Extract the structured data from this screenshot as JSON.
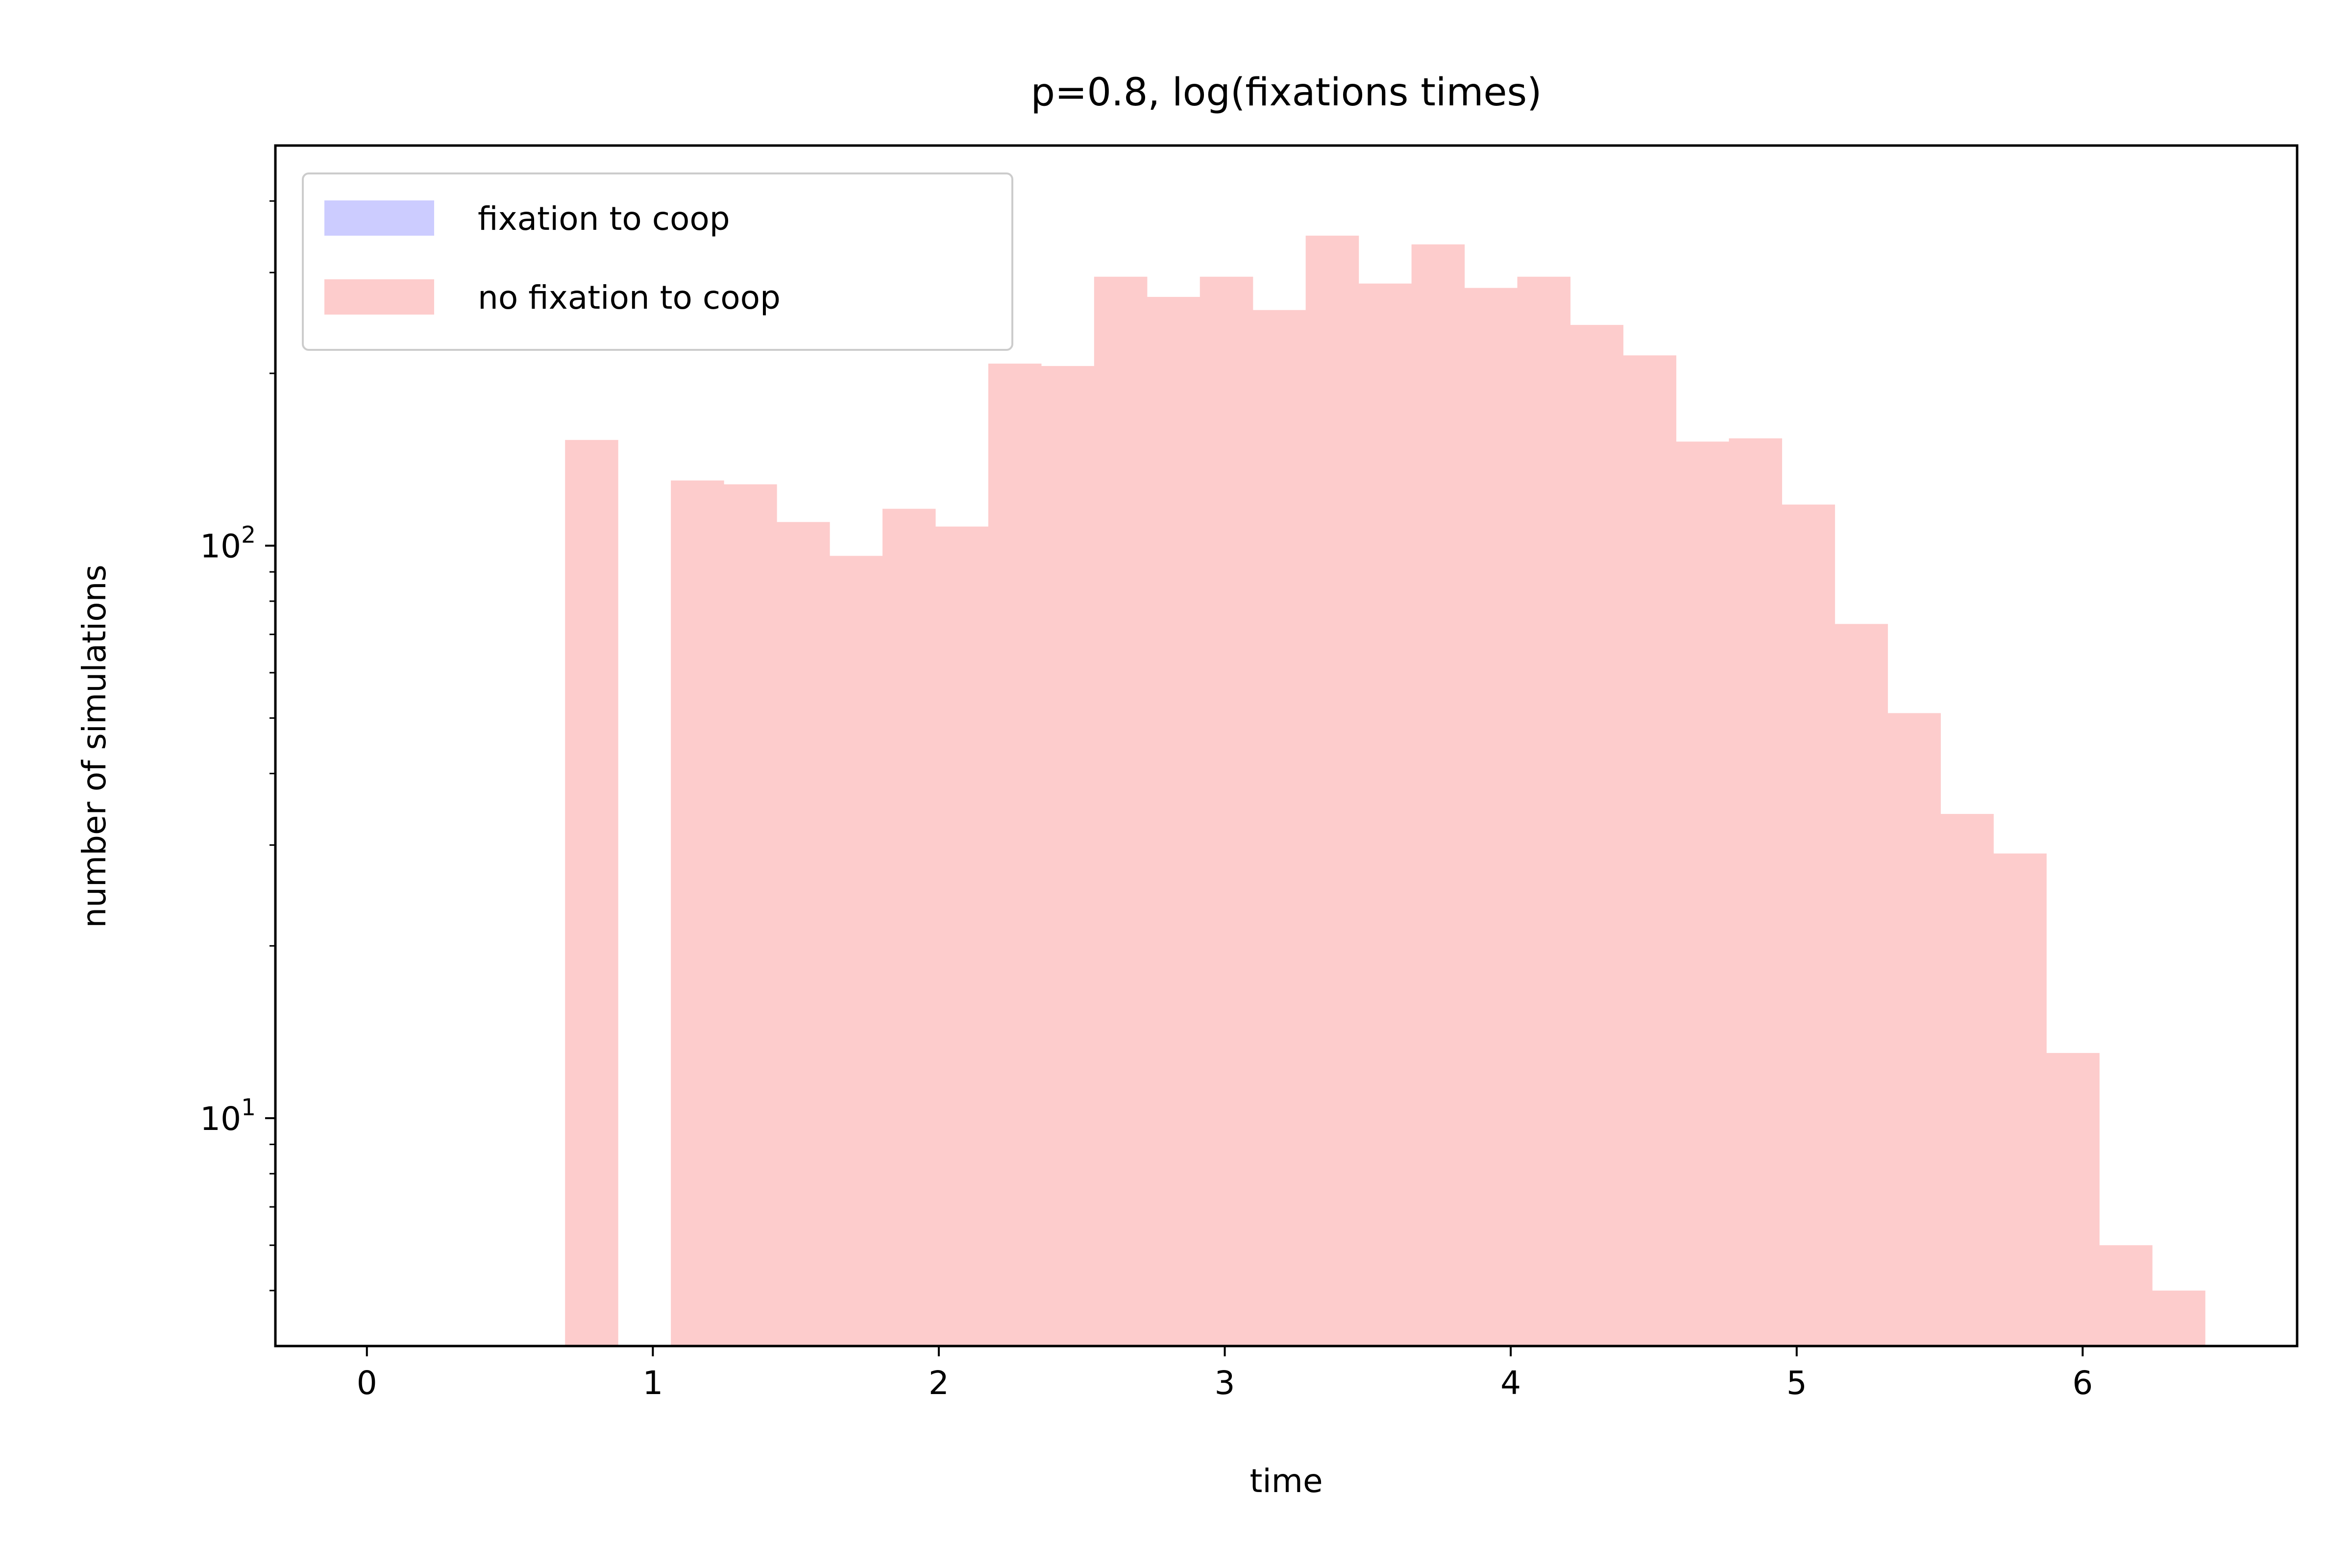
{
  "chart_data": {
    "type": "bar",
    "title": "p=0.8, log(fixations times)",
    "xlabel": "time",
    "ylabel": "number of simulations",
    "xlim": [
      -0.32,
      6.75
    ],
    "ylim": [
      4.0,
      500.0
    ],
    "yscale": "log",
    "grid": false,
    "legend_position": "top-left",
    "x_ticks": [
      {
        "value": 0,
        "label": "0"
      },
      {
        "value": 1,
        "label": "1"
      },
      {
        "value": 2,
        "label": "2"
      },
      {
        "value": 3,
        "label": "3"
      },
      {
        "value": 4,
        "label": "4"
      },
      {
        "value": 5,
        "label": "5"
      },
      {
        "value": 6,
        "label": "6"
      }
    ],
    "y_ticks": [
      {
        "value": 10,
        "base": "10",
        "exp": "1"
      },
      {
        "value": 100,
        "base": "10",
        "exp": "2"
      }
    ],
    "bin_width": 0.185,
    "series": [
      {
        "name": "fixation to coop",
        "color": "#ccccff",
        "bins": []
      },
      {
        "name": "no fixation to coop",
        "color": "#fdcccc",
        "bins": [
          {
            "x0": 0.693,
            "count": 153
          },
          {
            "x0": 1.063,
            "count": 130
          },
          {
            "x0": 1.248,
            "count": 128
          },
          {
            "x0": 1.433,
            "count": 110
          },
          {
            "x0": 1.618,
            "count": 96
          },
          {
            "x0": 1.803,
            "count": 116
          },
          {
            "x0": 1.988,
            "count": 108
          },
          {
            "x0": 2.173,
            "count": 208
          },
          {
            "x0": 2.358,
            "count": 206
          },
          {
            "x0": 2.543,
            "count": 295
          },
          {
            "x0": 2.728,
            "count": 272
          },
          {
            "x0": 2.913,
            "count": 295
          },
          {
            "x0": 3.098,
            "count": 258
          },
          {
            "x0": 3.283,
            "count": 348
          },
          {
            "x0": 3.468,
            "count": 287
          },
          {
            "x0": 3.653,
            "count": 336
          },
          {
            "x0": 3.838,
            "count": 282
          },
          {
            "x0": 4.023,
            "count": 295
          },
          {
            "x0": 4.208,
            "count": 243
          },
          {
            "x0": 4.393,
            "count": 215
          },
          {
            "x0": 4.578,
            "count": 152
          },
          {
            "x0": 4.763,
            "count": 154
          },
          {
            "x0": 4.948,
            "count": 118
          },
          {
            "x0": 5.133,
            "count": 73
          },
          {
            "x0": 5.318,
            "count": 51
          },
          {
            "x0": 5.503,
            "count": 34
          },
          {
            "x0": 5.688,
            "count": 29
          },
          {
            "x0": 5.873,
            "count": 13
          },
          {
            "x0": 6.058,
            "count": 6
          },
          {
            "x0": 6.243,
            "count": 5
          }
        ]
      }
    ]
  }
}
